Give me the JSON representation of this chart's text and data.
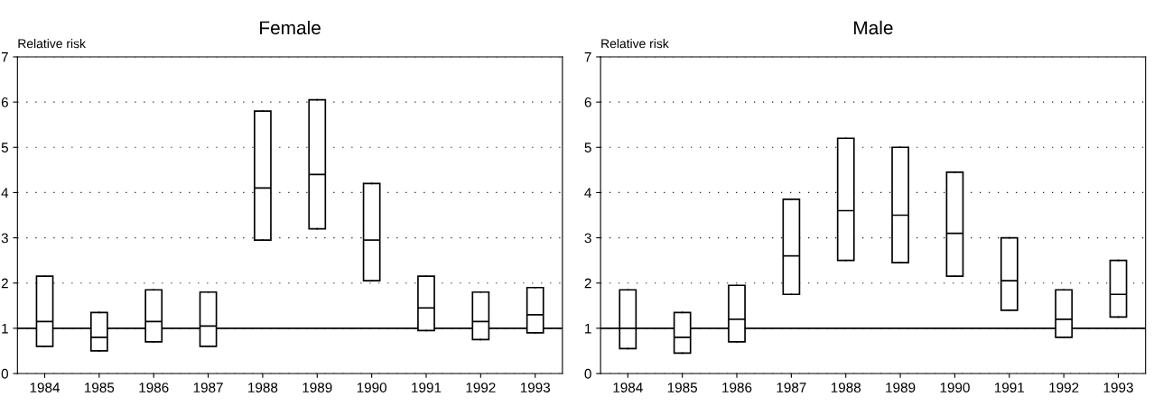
{
  "chart_data": [
    {
      "type": "box",
      "title": "Female",
      "ylabel": "Relative risk",
      "categories": [
        "1984",
        "1985",
        "1986",
        "1987",
        "1988",
        "1989",
        "1990",
        "1991",
        "1992",
        "1993"
      ],
      "boxes": [
        {
          "low": 0.6,
          "q1": 0.6,
          "median": 1.15,
          "q3": 2.15,
          "high": 2.15
        },
        {
          "low": 0.5,
          "q1": 0.5,
          "median": 0.8,
          "q3": 1.35,
          "high": 1.35
        },
        {
          "low": 0.7,
          "q1": 0.7,
          "median": 1.15,
          "q3": 1.85,
          "high": 1.85
        },
        {
          "low": 0.6,
          "q1": 0.6,
          "median": 1.05,
          "q3": 1.8,
          "high": 1.8
        },
        {
          "low": 2.95,
          "q1": 2.95,
          "median": 4.1,
          "q3": 5.8,
          "high": 5.8
        },
        {
          "low": 3.2,
          "q1": 3.2,
          "median": 4.4,
          "q3": 6.05,
          "high": 6.05
        },
        {
          "low": 2.05,
          "q1": 2.05,
          "median": 2.95,
          "q3": 4.2,
          "high": 4.2
        },
        {
          "low": 0.95,
          "q1": 0.95,
          "median": 1.45,
          "q3": 2.15,
          "high": 2.15
        },
        {
          "low": 0.75,
          "q1": 0.75,
          "median": 1.15,
          "q3": 1.8,
          "high": 1.8
        },
        {
          "low": 0.9,
          "q1": 0.9,
          "median": 1.3,
          "q3": 1.9,
          "high": 1.9
        }
      ],
      "ylim": [
        0,
        7
      ],
      "yticks": [
        0,
        1,
        2,
        3,
        4,
        5,
        6,
        7
      ],
      "grid": "y",
      "ref_lines": [
        {
          "axis": "y",
          "value": 1,
          "color": "#000000",
          "line_style": "solid"
        }
      ]
    },
    {
      "type": "box",
      "title": "Male",
      "ylabel": "Relative risk",
      "categories": [
        "1984",
        "1985",
        "1986",
        "1987",
        "1988",
        "1989",
        "1990",
        "1991",
        "1992",
        "1993"
      ],
      "boxes": [
        {
          "low": 0.55,
          "q1": 0.55,
          "median": 1.0,
          "q3": 1.85,
          "high": 1.85
        },
        {
          "low": 0.45,
          "q1": 0.45,
          "median": 0.8,
          "q3": 1.35,
          "high": 1.35
        },
        {
          "low": 0.7,
          "q1": 0.7,
          "median": 1.2,
          "q3": 1.95,
          "high": 1.95
        },
        {
          "low": 1.75,
          "q1": 1.75,
          "median": 2.6,
          "q3": 3.85,
          "high": 3.85
        },
        {
          "low": 2.5,
          "q1": 2.5,
          "median": 3.6,
          "q3": 5.2,
          "high": 5.2
        },
        {
          "low": 2.45,
          "q1": 2.45,
          "median": 3.5,
          "q3": 5.0,
          "high": 5.0
        },
        {
          "low": 2.15,
          "q1": 2.15,
          "median": 3.1,
          "q3": 4.45,
          "high": 4.45
        },
        {
          "low": 1.4,
          "q1": 1.4,
          "median": 2.05,
          "q3": 3.0,
          "high": 3.0
        },
        {
          "low": 0.8,
          "q1": 0.8,
          "median": 1.2,
          "q3": 1.85,
          "high": 1.85
        },
        {
          "low": 1.25,
          "q1": 1.25,
          "median": 1.75,
          "q3": 2.5,
          "high": 2.5
        }
      ],
      "ylim": [
        0,
        7
      ],
      "yticks": [
        0,
        1,
        2,
        3,
        4,
        5,
        6,
        7
      ],
      "grid": "y",
      "ref_lines": [
        {
          "axis": "y",
          "value": 1,
          "color": "#000000",
          "line_style": "solid"
        }
      ]
    }
  ]
}
